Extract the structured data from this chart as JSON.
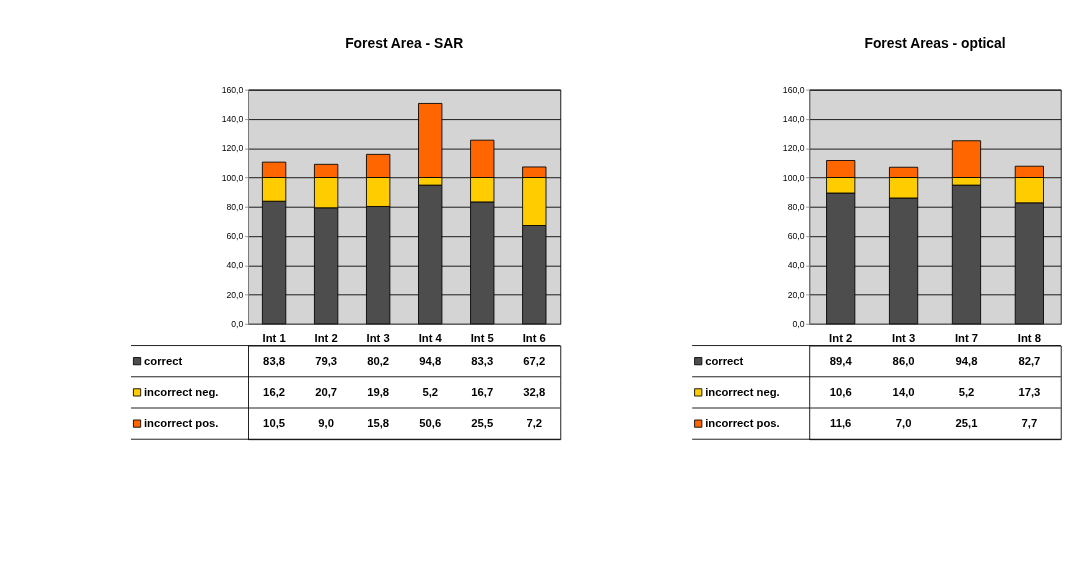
{
  "chart_data": [
    {
      "type": "bar",
      "title": "Forest Area - SAR",
      "stacked": true,
      "grid": "y",
      "legend": "bottom left",
      "categories": [
        "Int 1",
        "Int 2",
        "Int 3",
        "Int 4",
        "Int 5",
        "Int 6"
      ],
      "ylim": [
        0,
        160
      ],
      "yticks": [
        {
          "value": 0,
          "label": "0,0"
        },
        {
          "value": 20,
          "label": "20,0"
        },
        {
          "value": 40,
          "label": "40,0"
        },
        {
          "value": 60,
          "label": "60,0"
        },
        {
          "value": 80,
          "label": "80,0"
        },
        {
          "value": 100,
          "label": "100,0"
        },
        {
          "value": 120,
          "label": "120,0"
        },
        {
          "value": 140,
          "label": "140,0"
        },
        {
          "value": 160,
          "label": "160,0"
        }
      ],
      "series": [
        {
          "name": "correct",
          "color": "#4d4d4d",
          "values": [
            83.8,
            79.3,
            80.2,
            94.8,
            83.3,
            67.2
          ],
          "value_labels": [
            "83,8",
            "79,3",
            "80,2",
            "94,8",
            "83,3",
            "67,2"
          ]
        },
        {
          "name": "incorrect neg.",
          "color": "#ffcc00",
          "values": [
            16.2,
            20.7,
            19.8,
            5.2,
            16.7,
            32.8
          ],
          "value_labels": [
            "16,2",
            "20,7",
            "19,8",
            "5,2",
            "16,7",
            "32,8"
          ]
        },
        {
          "name": "incorrect pos.",
          "color": "#ff6600",
          "values": [
            10.5,
            9.0,
            15.8,
            50.6,
            25.5,
            7.2
          ],
          "value_labels": [
            "10,5",
            "9,0",
            "15,8",
            "50,6",
            "25,5",
            "7,2"
          ]
        }
      ]
    },
    {
      "type": "bar",
      "title": "Forest Areas - optical",
      "stacked": true,
      "grid": "y",
      "legend": "bottom left",
      "categories": [
        "Int 2",
        "Int 3",
        "Int 7",
        "Int 8"
      ],
      "ylim": [
        0,
        160
      ],
      "yticks": [
        {
          "value": 0,
          "label": "0,0"
        },
        {
          "value": 20,
          "label": "20,0"
        },
        {
          "value": 40,
          "label": "40,0"
        },
        {
          "value": 60,
          "label": "60,0"
        },
        {
          "value": 80,
          "label": "80,0"
        },
        {
          "value": 100,
          "label": "100,0"
        },
        {
          "value": 120,
          "label": "120,0"
        },
        {
          "value": 140,
          "label": "140,0"
        },
        {
          "value": 160,
          "label": "160,0"
        }
      ],
      "series": [
        {
          "name": "correct",
          "color": "#4d4d4d",
          "values": [
            89.4,
            86.0,
            94.8,
            82.7
          ],
          "value_labels": [
            "89,4",
            "86,0",
            "94,8",
            "82,7"
          ]
        },
        {
          "name": "incorrect neg.",
          "color": "#ffcc00",
          "values": [
            10.6,
            14.0,
            5.2,
            17.3
          ],
          "value_labels": [
            "10,6",
            "14,0",
            "5,2",
            "17,3"
          ]
        },
        {
          "name": "incorrect pos.",
          "color": "#ff6600",
          "values": [
            11.6,
            7.0,
            25.1,
            7.7
          ],
          "value_labels": [
            "11,6",
            "7,0",
            "25,1",
            "7,7"
          ]
        }
      ]
    }
  ]
}
